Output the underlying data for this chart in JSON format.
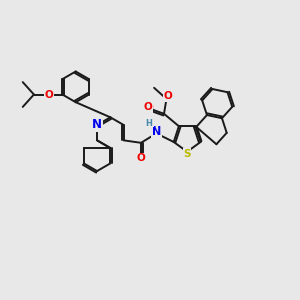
{
  "bg_color": "#e8e8e8",
  "bond_color": "#1a1a1a",
  "bond_width": 1.4,
  "dbo": 0.07,
  "atom_colors": {
    "N": "#0000ee",
    "O": "#ee0000",
    "S": "#bbbb00",
    "H": "#4488aa",
    "C": "#1a1a1a"
  },
  "fs": 7.5,
  "figsize": [
    3.0,
    3.0
  ],
  "dpi": 100,
  "xlim": [
    0,
    12
  ],
  "ylim": [
    0,
    10
  ]
}
